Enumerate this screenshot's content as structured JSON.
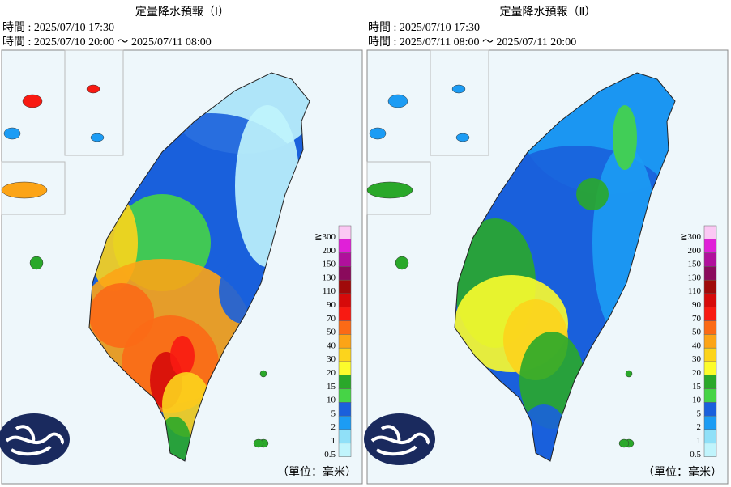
{
  "panels": [
    {
      "title": "定量降水預報（Ⅰ）",
      "issued": "時間 : 2025/07/10 17:30",
      "valid": "時間 : 2025/07/10 20:00 ～ 2025/07/11 08:00",
      "unit": "（單位：毫米）"
    },
    {
      "title": "定量降水預報（Ⅱ）",
      "issued": "時間 : 2025/07/10 17:30",
      "valid": "時間 : 2025/07/11 08:00 ～ 2025/07/11 20:00",
      "unit": "（單位：毫米）"
    }
  ],
  "legend": [
    {
      "label": "≧300",
      "color": "#fbc8f4"
    },
    {
      "label": "200",
      "color": "#e020d8"
    },
    {
      "label": "150",
      "color": "#b0109c"
    },
    {
      "label": "130",
      "color": "#8a0a5c"
    },
    {
      "label": "110",
      "color": "#a00a0a"
    },
    {
      "label": "90",
      "color": "#d60a0a"
    },
    {
      "label": "70",
      "color": "#f81a12"
    },
    {
      "label": "50",
      "color": "#fb6a16"
    },
    {
      "label": "40",
      "color": "#fca416"
    },
    {
      "label": "30",
      "color": "#fcd41c"
    },
    {
      "label": "20",
      "color": "#fcfc2c"
    },
    {
      "label": "15",
      "color": "#2aa82a"
    },
    {
      "label": "10",
      "color": "#46d446"
    },
    {
      "label": "5",
      "color": "#1a60dc"
    },
    {
      "label": "2",
      "color": "#1c9cf4"
    },
    {
      "label": "1",
      "color": "#90e0f8"
    },
    {
      "label": "0.5",
      "color": "#c0f4fc"
    }
  ]
}
